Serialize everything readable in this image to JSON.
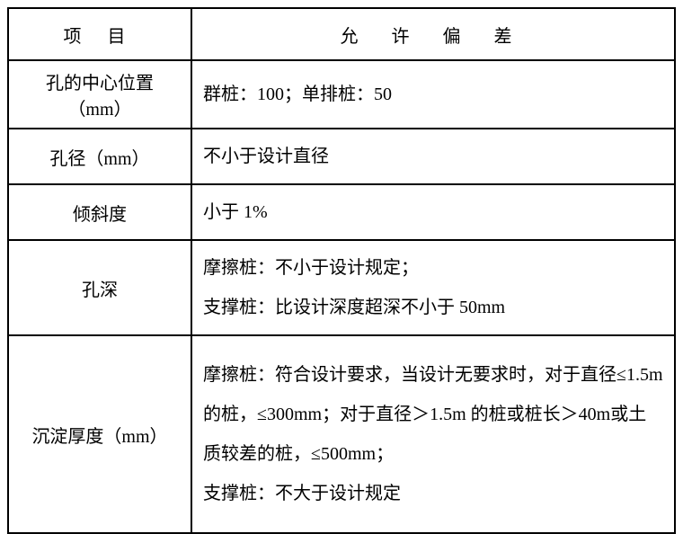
{
  "table": {
    "header": {
      "col1": "项 目",
      "col2": "允 许 偏 差"
    },
    "rows": [
      {
        "label": "孔的中心位置（mm）",
        "value": "群桩：100；单排桩：50"
      },
      {
        "label": "孔径（mm）",
        "value": "不小于设计直径"
      },
      {
        "label": "倾斜度",
        "value": "小于 1%"
      },
      {
        "label": "孔深",
        "value": "摩擦桩：不小于设计规定；\n支撑桩：比设计深度超深不小于 50mm"
      },
      {
        "label": "沉淀厚度（mm）",
        "value": "摩擦桩：符合设计要求，当设计无要求时，对于直径≤1.5m 的桩，≤300mm；对于直径＞1.5m 的桩或桩长＞40m或土质较差的桩，≤500mm；\n支撑桩：不大于设计规定"
      }
    ]
  }
}
